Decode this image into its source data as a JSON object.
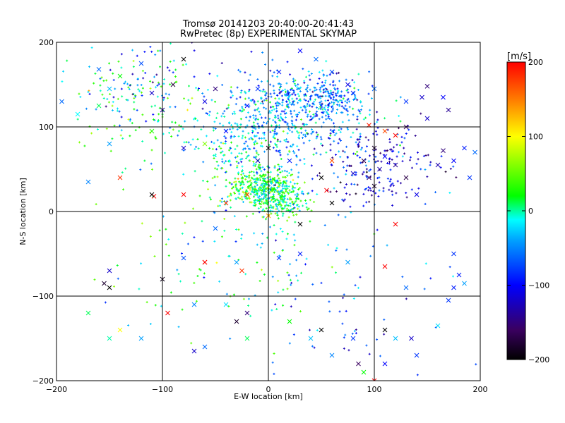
{
  "chart_data": {
    "type": "scatter",
    "title": "Tromsø 20141203 20:40:00-20:41:43",
    "subtitle": "RwPretec (8p) EXPERIMENTAL SKYMAP",
    "xlabel": "E-W location [km]",
    "ylabel": "N-S location [km]",
    "xlim": [
      -200,
      200
    ],
    "ylim": [
      -200,
      200
    ],
    "xticks": [
      -200,
      -100,
      0,
      100,
      200
    ],
    "yticks": [
      -200,
      -100,
      0,
      100,
      200
    ],
    "grid": true,
    "gridlines_x": [
      -100,
      0,
      100
    ],
    "gridlines_y": [
      -100,
      0,
      100
    ],
    "markers": [
      "+ (dense small points)",
      "x (sparse crosses)"
    ],
    "colorbar": {
      "label": "[m/s]",
      "min": -200,
      "max": 200,
      "ticks": [
        -200,
        -100,
        0,
        100,
        200
      ],
      "colormap": [
        "#000000",
        "#3a0060",
        "#0000ff",
        "#00a0ff",
        "#00ffff",
        "#00ff00",
        "#ffff00",
        "#ff8000",
        "#ff0000"
      ],
      "placement": "right"
    },
    "clusters": [
      {
        "center": [
          0,
          25
        ],
        "spread": [
          14,
          12
        ],
        "count": 320,
        "value": 10
      },
      {
        "center": [
          -20,
          35
        ],
        "spread": [
          18,
          14
        ],
        "count": 160,
        "value": 25
      },
      {
        "center": [
          15,
          10
        ],
        "spread": [
          12,
          10
        ],
        "count": 120,
        "value": 5
      },
      {
        "center": [
          20,
          105
        ],
        "spread": [
          40,
          25
        ],
        "count": 380,
        "value": -40
      },
      {
        "center": [
          35,
          135
        ],
        "spread": [
          30,
          15
        ],
        "count": 240,
        "value": -55
      },
      {
        "center": [
          -20,
          85
        ],
        "spread": [
          30,
          25
        ],
        "count": 180,
        "value": -10
      },
      {
        "center": [
          -130,
          130
        ],
        "spread": [
          35,
          35
        ],
        "count": 150,
        "value": 10
      },
      {
        "center": [
          60,
          140
        ],
        "spread": [
          10,
          10
        ],
        "count": 60,
        "value": -80
      },
      {
        "center": [
          100,
          55
        ],
        "spread": [
          30,
          25
        ],
        "count": 200,
        "value": -110
      },
      {
        "center": [
          0,
          -50
        ],
        "spread": [
          60,
          45
        ],
        "count": 90,
        "value": -30
      },
      {
        "center": [
          -60,
          -50
        ],
        "spread": [
          70,
          60
        ],
        "count": 70,
        "value": 20
      },
      {
        "center": [
          90,
          -130
        ],
        "spread": [
          60,
          40
        ],
        "count": 50,
        "value": -80
      },
      {
        "center": [
          -100,
          160
        ],
        "spread": [
          40,
          25
        ],
        "count": 60,
        "value": -100
      }
    ],
    "crosses": [
      [
        -180,
        115,
        -10
      ],
      [
        -160,
        168,
        -60
      ],
      [
        -150,
        145,
        -30
      ],
      [
        -140,
        160,
        20
      ],
      [
        -120,
        175,
        -70
      ],
      [
        -80,
        180,
        -200
      ],
      [
        -90,
        150,
        -180
      ],
      [
        -110,
        140,
        -120
      ],
      [
        -100,
        120,
        -140
      ],
      [
        -110,
        95,
        30
      ],
      [
        -160,
        125,
        10
      ],
      [
        -150,
        80,
        -40
      ],
      [
        -170,
        35,
        -50
      ],
      [
        -140,
        40,
        180
      ],
      [
        -108,
        18,
        200
      ],
      [
        -110,
        20,
        -200
      ],
      [
        -195,
        130,
        -60
      ],
      [
        -40,
        95,
        -100
      ],
      [
        -60,
        80,
        60
      ],
      [
        -80,
        75,
        -120
      ],
      [
        -50,
        145,
        -150
      ],
      [
        -60,
        130,
        -110
      ],
      [
        -20,
        125,
        -100
      ],
      [
        -10,
        145,
        -80
      ],
      [
        10,
        165,
        -90
      ],
      [
        30,
        190,
        -100
      ],
      [
        45,
        180,
        -60
      ],
      [
        60,
        165,
        -70
      ],
      [
        75,
        150,
        -110
      ],
      [
        80,
        140,
        -90
      ],
      [
        100,
        145,
        -60
      ],
      [
        130,
        130,
        -80
      ],
      [
        145,
        135,
        -120
      ],
      [
        150,
        148,
        -150
      ],
      [
        165,
        135,
        -100
      ],
      [
        170,
        120,
        -140
      ],
      [
        150,
        110,
        -120
      ],
      [
        130,
        100,
        -160
      ],
      [
        110,
        95,
        170
      ],
      [
        95,
        102,
        190
      ],
      [
        120,
        90,
        200
      ],
      [
        100,
        75,
        -180
      ],
      [
        90,
        60,
        -170
      ],
      [
        80,
        45,
        -120
      ],
      [
        95,
        40,
        -150
      ],
      [
        100,
        30,
        -180
      ],
      [
        105,
        50,
        -130
      ],
      [
        110,
        65,
        -100
      ],
      [
        120,
        55,
        -140
      ],
      [
        130,
        40,
        -170
      ],
      [
        140,
        20,
        -110
      ],
      [
        160,
        55,
        -130
      ],
      [
        165,
        72,
        -150
      ],
      [
        175,
        60,
        -100
      ],
      [
        185,
        75,
        -90
      ],
      [
        195,
        70,
        -60
      ],
      [
        190,
        40,
        -80
      ],
      [
        60,
        60,
        170
      ],
      [
        50,
        40,
        -200
      ],
      [
        55,
        25,
        200
      ],
      [
        0,
        75,
        -200
      ],
      [
        -10,
        60,
        -120
      ],
      [
        20,
        60,
        -90
      ],
      [
        -40,
        10,
        180
      ],
      [
        30,
        -15,
        -200
      ],
      [
        -50,
        -20,
        -60
      ],
      [
        -30,
        -60,
        -40
      ],
      [
        0,
        -5,
        140
      ],
      [
        -25,
        -70,
        180
      ],
      [
        -80,
        -55,
        -70
      ],
      [
        -60,
        -60,
        180
      ],
      [
        -100,
        -80,
        -190
      ],
      [
        -150,
        -70,
        -120
      ],
      [
        -150,
        -90,
        -200
      ],
      [
        -155,
        -85,
        -180
      ],
      [
        -140,
        -140,
        100
      ],
      [
        -150,
        -150,
        0
      ],
      [
        -170,
        -120,
        10
      ],
      [
        -120,
        -150,
        -40
      ],
      [
        -70,
        -110,
        -50
      ],
      [
        -95,
        -120,
        200
      ],
      [
        -70,
        -165,
        -120
      ],
      [
        -60,
        -160,
        -60
      ],
      [
        -40,
        -110,
        -20
      ],
      [
        -30,
        -130,
        -180
      ],
      [
        -20,
        -120,
        -150
      ],
      [
        -20,
        -150,
        10
      ],
      [
        20,
        -130,
        20
      ],
      [
        40,
        -150,
        -30
      ],
      [
        50,
        -140,
        -200
      ],
      [
        60,
        -170,
        -50
      ],
      [
        80,
        -150,
        -80
      ],
      [
        85,
        -180,
        -160
      ],
      [
        90,
        -190,
        20
      ],
      [
        100,
        -200,
        200
      ],
      [
        110,
        -180,
        -100
      ],
      [
        110,
        -140,
        -200
      ],
      [
        120,
        -150,
        -30
      ],
      [
        135,
        -150,
        -120
      ],
      [
        140,
        -170,
        -80
      ],
      [
        160,
        -135,
        -20
      ],
      [
        170,
        -105,
        -80
      ],
      [
        175,
        -90,
        -90
      ],
      [
        185,
        -85,
        -40
      ],
      [
        180,
        -75,
        -90
      ],
      [
        175,
        -50,
        -80
      ],
      [
        130,
        -90,
        -60
      ],
      [
        110,
        -65,
        200
      ],
      [
        120,
        -15,
        200
      ],
      [
        75,
        -60,
        -40
      ],
      [
        30,
        -50,
        -90
      ],
      [
        10,
        -55,
        -80
      ],
      [
        -60,
        -60,
        200
      ],
      [
        -80,
        20,
        200
      ],
      [
        -20,
        20,
        180
      ],
      [
        60,
        10,
        -200
      ]
    ]
  }
}
